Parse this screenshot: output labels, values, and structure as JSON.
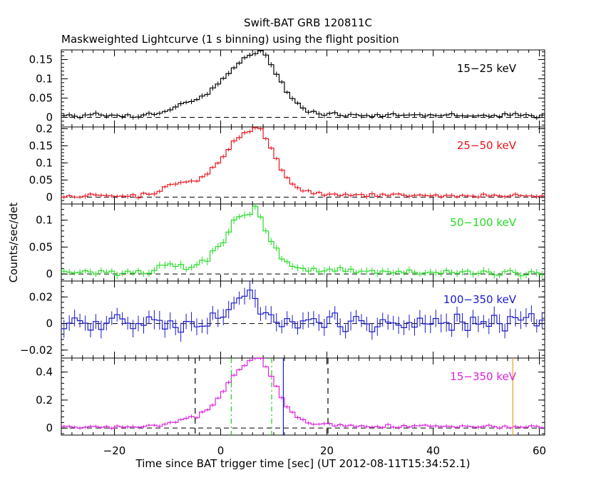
{
  "chart_data": {
    "type": "line",
    "title": "Swift-BAT GRB 120811C",
    "subtitle": "Maskweighted Lightcurve (1 s binning) using the flight position",
    "xlabel": "Time since BAT trigger time [sec] (UT 2012-08-11T15:34:52.1)",
    "ylabel": "Counts/sec/det",
    "xlim": [
      -30,
      61
    ],
    "x_ticks": [
      -20,
      0,
      20,
      40,
      60
    ],
    "x_tick_labels": [
      "−20",
      "0",
      "20",
      "40",
      "60"
    ],
    "binning_sec": 1,
    "style": "histogram-step-with-error-bars",
    "panels": [
      {
        "band": "15−25 keV",
        "color": "#000000",
        "ylim": [
          -0.025,
          0.175
        ],
        "y_ticks": [
          0,
          0.05,
          0.1,
          0.15
        ],
        "y_tick_labels": [
          "0",
          "0.05",
          "0.1",
          "0.15"
        ],
        "profile": {
          "peak_time": 6.5,
          "peak": 0.158,
          "rise_width": 6.0,
          "decay_width": 4.0,
          "bump_time": -7,
          "bump": 0.02,
          "baseline": 0.005,
          "noise": 0.004,
          "error": 0.006
        }
      },
      {
        "band": "25−50 keV",
        "color": "#e8141e",
        "ylim": [
          -0.02,
          0.205
        ],
        "y_ticks": [
          0,
          0.05,
          0.1,
          0.15,
          0.2
        ],
        "y_tick_labels": [
          "0",
          "0.05",
          "0.1",
          "0.15",
          "0.2"
        ],
        "profile": {
          "peak_time": 6.0,
          "peak": 0.19,
          "rise_width": 5.5,
          "decay_width": 3.8,
          "bump_time": -8,
          "bump": 0.03,
          "baseline": 0.004,
          "noise": 0.004,
          "error": 0.006
        }
      },
      {
        "band": "50−100 keV",
        "color": "#22dd22",
        "ylim": [
          -0.013,
          0.13
        ],
        "y_ticks": [
          0,
          0.05,
          0.1
        ],
        "y_tick_labels": [
          "0",
          "0.05",
          "0.1"
        ],
        "profile": {
          "peak_time": 5.5,
          "peak": 0.112,
          "rise_width": 4.5,
          "decay_width": 3.2,
          "bump_time": -9,
          "bump": 0.012,
          "baseline": 0.003,
          "noise": 0.004,
          "error": 0.006
        }
      },
      {
        "band": "100−350 keV",
        "color": "#1a1acc",
        "ylim": [
          -0.026,
          0.032
        ],
        "y_ticks": [
          -0.02,
          0,
          0.02
        ],
        "y_tick_labels": [
          "−0.02",
          "0",
          "0.02"
        ],
        "profile": {
          "peak_time": 5.0,
          "peak": 0.022,
          "rise_width": 2.5,
          "decay_width": 2.0,
          "bump_time": -9,
          "bump": 0.0,
          "baseline": 0.0,
          "noise": 0.005,
          "error": 0.006
        }
      },
      {
        "band": "15−350 keV",
        "color": "#dd22dd",
        "ylim": [
          -0.05,
          0.5
        ],
        "y_ticks": [
          0,
          0.2,
          0.4
        ],
        "y_tick_labels": [
          "0",
          "0.2",
          "0.4"
        ],
        "profile": {
          "peak_time": 6.0,
          "peak": 0.47,
          "rise_width": 5.0,
          "decay_width": 4.0,
          "bump_time": -7,
          "bump": 0.04,
          "baseline": 0.01,
          "noise": 0.008,
          "error": 0.012
        },
        "markers": [
          {
            "name": "t-start-dashed",
            "x": -4.8,
            "color": "#000000",
            "dash": "8,6"
          },
          {
            "name": "t-end-dashed",
            "x": 20.2,
            "color": "#000000",
            "dash": "8,6"
          },
          {
            "name": "t90-start",
            "x": 2.0,
            "color": "#22cc22",
            "dash": "7,4,2,4"
          },
          {
            "name": "t90-end",
            "x": 9.6,
            "color": "#22cc22",
            "dash": "7,4,2,4"
          },
          {
            "name": "peak-marker",
            "x": 11.8,
            "color": "#1a1acc",
            "dash": ""
          },
          {
            "name": "slew-marker",
            "x": 55.0,
            "color": "#e8a020",
            "dash": ""
          }
        ]
      }
    ]
  }
}
